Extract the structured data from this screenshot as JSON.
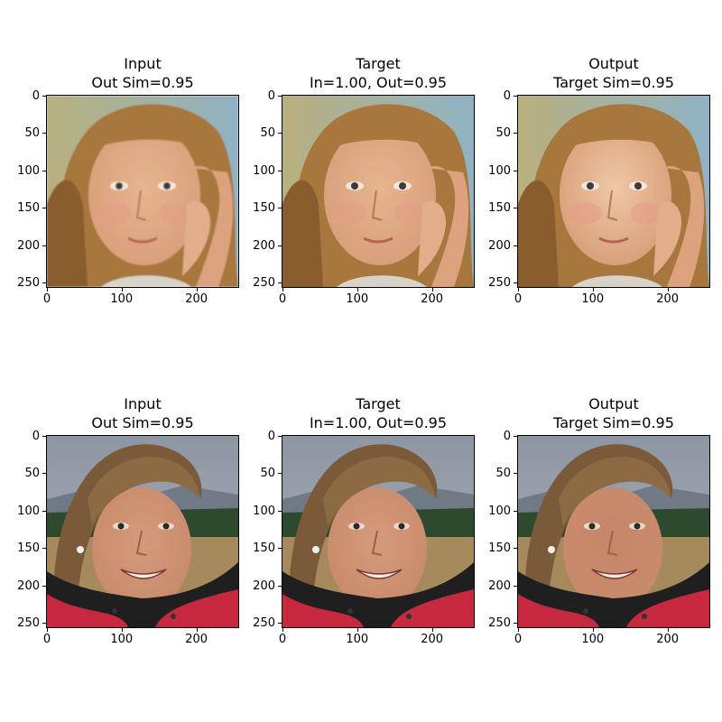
{
  "figure": {
    "panels": [
      {
        "row": 0,
        "col": 0,
        "title_line1": "Input",
        "title_line2": "Out Sim=0.95",
        "scene": "girl-face",
        "variant": "input"
      },
      {
        "row": 0,
        "col": 1,
        "title_line1": "Target",
        "title_line2": "In=1.00, Out=0.95",
        "scene": "girl-face",
        "variant": "target"
      },
      {
        "row": 0,
        "col": 2,
        "title_line1": "Output",
        "title_line2": "Target Sim=0.95",
        "scene": "girl-face",
        "variant": "output"
      },
      {
        "row": 1,
        "col": 0,
        "title_line1": "Input",
        "title_line2": "Out Sim=0.95",
        "scene": "woman-outdoor",
        "variant": "input"
      },
      {
        "row": 1,
        "col": 1,
        "title_line1": "Target",
        "title_line2": "In=1.00, Out=0.95",
        "scene": "woman-outdoor",
        "variant": "target"
      },
      {
        "row": 1,
        "col": 2,
        "title_line1": "Output",
        "title_line2": "Target Sim=0.95",
        "scene": "woman-outdoor",
        "variant": "output"
      }
    ],
    "y_ticks": [
      "0",
      "50",
      "100",
      "150",
      "200",
      "250"
    ],
    "x_ticks": [
      "0",
      "100",
      "200"
    ],
    "colors": {
      "girl_bg": "#8fb2c4",
      "girl_hair": "#a8773d",
      "girl_skin": "#e6b48e",
      "girl_cheek": "#e49a8a",
      "woman_sky": "#aab2bf",
      "woman_hills": "#6f7a86",
      "woman_grass": "#2d4a2e",
      "woman_field": "#a68a5c",
      "woman_hair": "#7a5a38",
      "woman_skin": "#c98b6c",
      "woman_jacket": "#c8283f",
      "woman_collar": "#1f1f1f"
    }
  }
}
